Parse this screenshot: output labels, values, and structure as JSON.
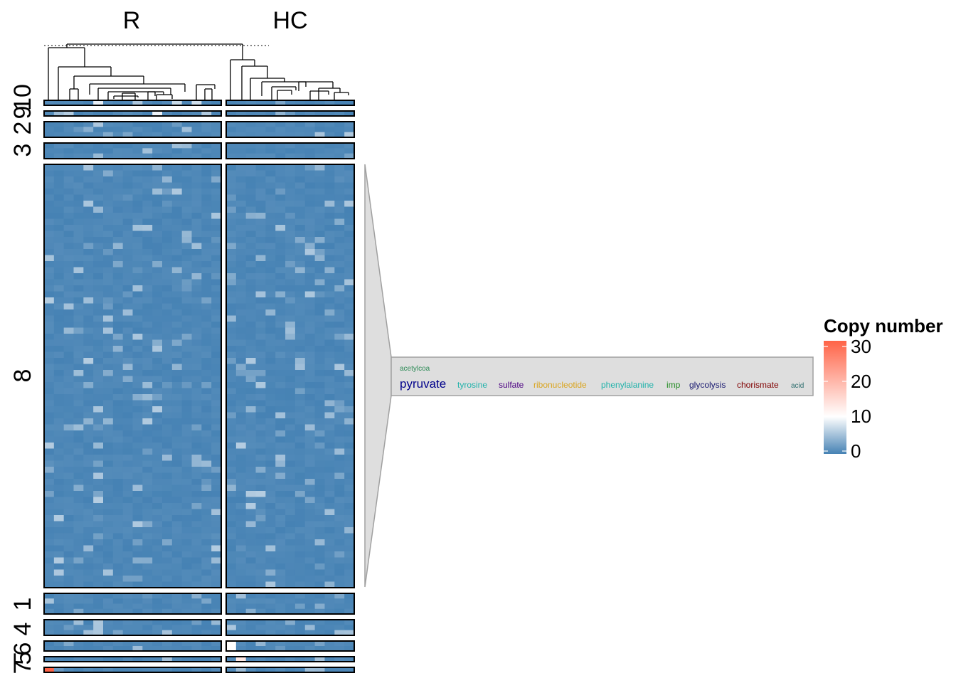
{
  "chart_data": {
    "type": "heatmap",
    "column_splits": [
      "R",
      "HC"
    ],
    "row_splits": [
      "10",
      "9",
      "2",
      "3",
      "8",
      "1",
      "4",
      "6",
      "5",
      "7"
    ],
    "row_split_left_labels": [
      "10",
      "9",
      "2",
      "3",
      "8",
      "1",
      "4",
      "6",
      "5",
      "7"
    ],
    "legend": {
      "title": "Copy number",
      "breaks": [
        0,
        10,
        20,
        30
      ],
      "range": [
        0,
        30
      ],
      "colors": {
        "low": "#4682B4",
        "mid": "#FFFFFF",
        "high": "#FF6347"
      }
    },
    "dendrogram": "column clustering shown above heatmap",
    "annotation_wordcloud": {
      "cluster": "8",
      "words": [
        {
          "text": "acetylcoa",
          "color": "#2E8B57"
        },
        {
          "text": "pyruvate",
          "color": "#00008B"
        },
        {
          "text": "tyrosine",
          "color": "#20B2AA"
        },
        {
          "text": "sulfate",
          "color": "#4B0082"
        },
        {
          "text": "ribonucleotide",
          "color": "#DAA520"
        },
        {
          "text": "phenylalanine",
          "color": "#20B2AA"
        },
        {
          "text": "imp",
          "color": "#228B22"
        },
        {
          "text": "glycolysis",
          "color": "#191970"
        },
        {
          "text": "chorismate",
          "color": "#800000"
        },
        {
          "text": "acid",
          "color": "#2F6F6F"
        }
      ]
    }
  }
}
